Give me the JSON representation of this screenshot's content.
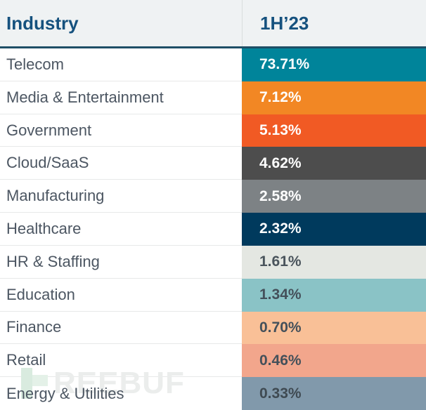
{
  "header": {
    "industry_label": "Industry",
    "period_label": "1H’23"
  },
  "rows": [
    {
      "industry": "Telecom",
      "value": "73.71%",
      "cell_color": "#00849a",
      "text_color": "#ffffff"
    },
    {
      "industry": "Media & Entertainment",
      "value": "7.12%",
      "cell_color": "#f28724",
      "text_color": "#ffffff"
    },
    {
      "industry": "Government",
      "value": "5.13%",
      "cell_color": "#f15a24",
      "text_color": "#ffffff"
    },
    {
      "industry": "Cloud/SaaS",
      "value": "4.62%",
      "cell_color": "#4d4d4d",
      "text_color": "#ffffff"
    },
    {
      "industry": "Manufacturing",
      "value": "2.58%",
      "cell_color": "#7d8285",
      "text_color": "#ffffff"
    },
    {
      "industry": "Healthcare",
      "value": "2.32%",
      "cell_color": "#003a5d",
      "text_color": "#ffffff"
    },
    {
      "industry": "HR & Staffing",
      "value": "1.61%",
      "cell_color": "#e4e7e2",
      "text_color": "#4a545c"
    },
    {
      "industry": "Education",
      "value": "1.34%",
      "cell_color": "#8ac3c6",
      "text_color": "#44505a"
    },
    {
      "industry": "Finance",
      "value": "0.70%",
      "cell_color": "#f9c097",
      "text_color": "#44505a"
    },
    {
      "industry": "Retail",
      "value": "0.46%",
      "cell_color": "#f2a68c",
      "text_color": "#44505a"
    },
    {
      "industry": "Energy & Utilities",
      "value": "0.33%",
      "cell_color": "#8199ab",
      "text_color": "#3f4a52"
    }
  ],
  "watermark": {
    "text": "REEBUF"
  },
  "colors": {
    "header_bg": "#eff2f3",
    "header_text": "#15517e",
    "header_border": "#1e4f66",
    "row_label_text": "#4c5662",
    "row_separator": "#e7e9e9"
  },
  "chart_data": {
    "type": "table",
    "columns": [
      "Industry",
      "1H’23"
    ],
    "categories": [
      "Telecom",
      "Media & Entertainment",
      "Government",
      "Cloud/SaaS",
      "Manufacturing",
      "Healthcare",
      "HR & Staffing",
      "Education",
      "Finance",
      "Retail",
      "Energy & Utilities"
    ],
    "values": [
      73.71,
      7.12,
      5.13,
      4.62,
      2.58,
      2.32,
      1.61,
      1.34,
      0.7,
      0.46,
      0.33
    ],
    "unit": "%",
    "title": "",
    "legend": "none",
    "notes": "Each value cell has its own fill color; share of attacks by industry in 1H'23"
  }
}
